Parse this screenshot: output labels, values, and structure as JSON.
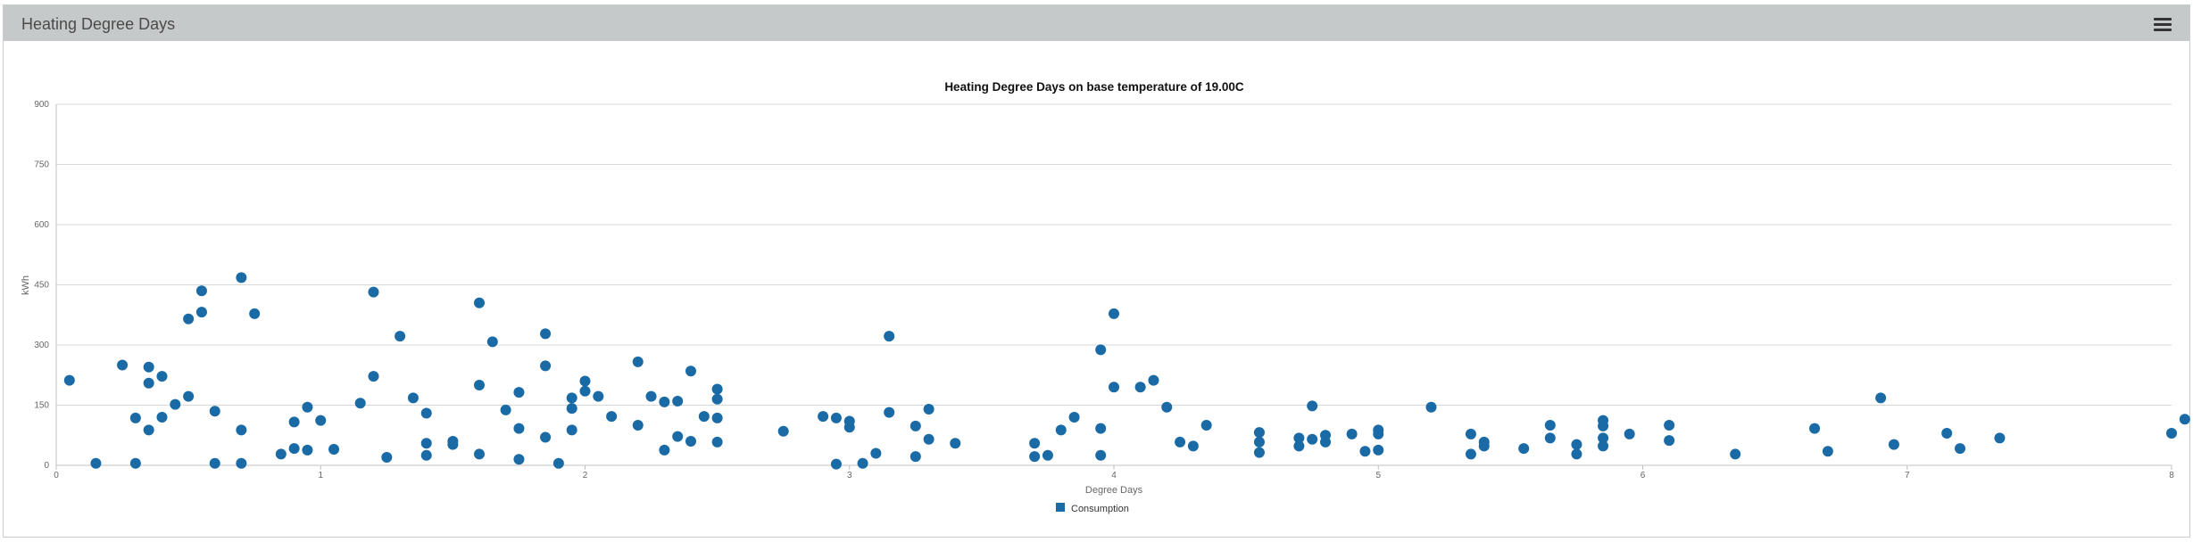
{
  "panel": {
    "title": "Heating Degree Days"
  },
  "chart_data": {
    "type": "scatter",
    "title": "Heating Degree Days on base temperature of 19.00C",
    "xlabel": "Degree Days",
    "ylabel": "kWh",
    "xlim": [
      0,
      8
    ],
    "ylim": [
      0,
      900
    ],
    "xticks": [
      0,
      1,
      2,
      3,
      4,
      5,
      6,
      7,
      8
    ],
    "yticks": [
      0,
      150,
      300,
      450,
      600,
      750,
      900
    ],
    "grid": "horizontal",
    "legend_position": "bottom-center",
    "series": [
      {
        "name": "Consumption",
        "color": "#1a6aa6",
        "points": [
          [
            0.05,
            212
          ],
          [
            0.15,
            5
          ],
          [
            0.25,
            250
          ],
          [
            0.3,
            118
          ],
          [
            0.3,
            5
          ],
          [
            0.35,
            205
          ],
          [
            0.35,
            245
          ],
          [
            0.35,
            88
          ],
          [
            0.4,
            120
          ],
          [
            0.4,
            222
          ],
          [
            0.45,
            152
          ],
          [
            0.5,
            365
          ],
          [
            0.5,
            172
          ],
          [
            0.55,
            382
          ],
          [
            0.55,
            435
          ],
          [
            0.6,
            135
          ],
          [
            0.6,
            5
          ],
          [
            0.7,
            468
          ],
          [
            0.7,
            88
          ],
          [
            0.7,
            5
          ],
          [
            0.75,
            378
          ],
          [
            0.85,
            28
          ],
          [
            0.9,
            108
          ],
          [
            0.9,
            42
          ],
          [
            0.95,
            38
          ],
          [
            0.95,
            145
          ],
          [
            1.0,
            112
          ],
          [
            1.05,
            40
          ],
          [
            1.15,
            155
          ],
          [
            1.2,
            222
          ],
          [
            1.2,
            432
          ],
          [
            1.25,
            20
          ],
          [
            1.3,
            322
          ],
          [
            1.35,
            168
          ],
          [
            1.4,
            130
          ],
          [
            1.4,
            55
          ],
          [
            1.4,
            25
          ],
          [
            1.5,
            60
          ],
          [
            1.5,
            52
          ],
          [
            1.6,
            405
          ],
          [
            1.6,
            28
          ],
          [
            1.6,
            200
          ],
          [
            1.65,
            308
          ],
          [
            1.7,
            138
          ],
          [
            1.75,
            182
          ],
          [
            1.75,
            92
          ],
          [
            1.75,
            15
          ],
          [
            1.85,
            328
          ],
          [
            1.85,
            248
          ],
          [
            1.85,
            70
          ],
          [
            1.9,
            5
          ],
          [
            1.95,
            168
          ],
          [
            1.95,
            142
          ],
          [
            1.95,
            88
          ],
          [
            2.0,
            210
          ],
          [
            2.0,
            185
          ],
          [
            2.05,
            172
          ],
          [
            2.1,
            122
          ],
          [
            2.2,
            258
          ],
          [
            2.2,
            100
          ],
          [
            2.25,
            172
          ],
          [
            2.3,
            158
          ],
          [
            2.3,
            38
          ],
          [
            2.35,
            160
          ],
          [
            2.35,
            72
          ],
          [
            2.4,
            235
          ],
          [
            2.4,
            60
          ],
          [
            2.45,
            122
          ],
          [
            2.5,
            190
          ],
          [
            2.5,
            165
          ],
          [
            2.5,
            118
          ],
          [
            2.5,
            58
          ],
          [
            2.75,
            85
          ],
          [
            2.9,
            122
          ],
          [
            2.95,
            118
          ],
          [
            2.95,
            3
          ],
          [
            3.0,
            110
          ],
          [
            3.0,
            95
          ],
          [
            3.05,
            5
          ],
          [
            3.1,
            30
          ],
          [
            3.15,
            322
          ],
          [
            3.15,
            132
          ],
          [
            3.25,
            98
          ],
          [
            3.25,
            22
          ],
          [
            3.3,
            140
          ],
          [
            3.3,
            65
          ],
          [
            3.4,
            55
          ],
          [
            3.7,
            55
          ],
          [
            3.7,
            22
          ],
          [
            3.75,
            25
          ],
          [
            3.8,
            88
          ],
          [
            3.85,
            120
          ],
          [
            3.95,
            288
          ],
          [
            3.95,
            92
          ],
          [
            3.95,
            25
          ],
          [
            4.0,
            378
          ],
          [
            4.0,
            195
          ],
          [
            4.1,
            195
          ],
          [
            4.15,
            212
          ],
          [
            4.2,
            145
          ],
          [
            4.25,
            58
          ],
          [
            4.3,
            48
          ],
          [
            4.35,
            100
          ],
          [
            4.55,
            82
          ],
          [
            4.55,
            58
          ],
          [
            4.55,
            32
          ],
          [
            4.7,
            68
          ],
          [
            4.7,
            48
          ],
          [
            4.75,
            148
          ],
          [
            4.75,
            65
          ],
          [
            4.8,
            75
          ],
          [
            4.8,
            58
          ],
          [
            4.9,
            78
          ],
          [
            4.95,
            35
          ],
          [
            5.0,
            88
          ],
          [
            5.0,
            78
          ],
          [
            5.0,
            38
          ],
          [
            5.2,
            145
          ],
          [
            5.35,
            78
          ],
          [
            5.35,
            28
          ],
          [
            5.4,
            58
          ],
          [
            5.4,
            48
          ],
          [
            5.55,
            42
          ],
          [
            5.65,
            100
          ],
          [
            5.65,
            68
          ],
          [
            5.75,
            52
          ],
          [
            5.75,
            28
          ],
          [
            5.85,
            112
          ],
          [
            5.85,
            98
          ],
          [
            5.85,
            68
          ],
          [
            5.85,
            48
          ],
          [
            5.95,
            78
          ],
          [
            6.1,
            100
          ],
          [
            6.1,
            62
          ],
          [
            6.35,
            28
          ],
          [
            6.65,
            92
          ],
          [
            6.7,
            35
          ],
          [
            6.9,
            168
          ],
          [
            6.95,
            52
          ],
          [
            7.15,
            80
          ],
          [
            7.2,
            42
          ],
          [
            7.35,
            68
          ],
          [
            8.0,
            80
          ],
          [
            8.05,
            115
          ]
        ]
      }
    ]
  }
}
